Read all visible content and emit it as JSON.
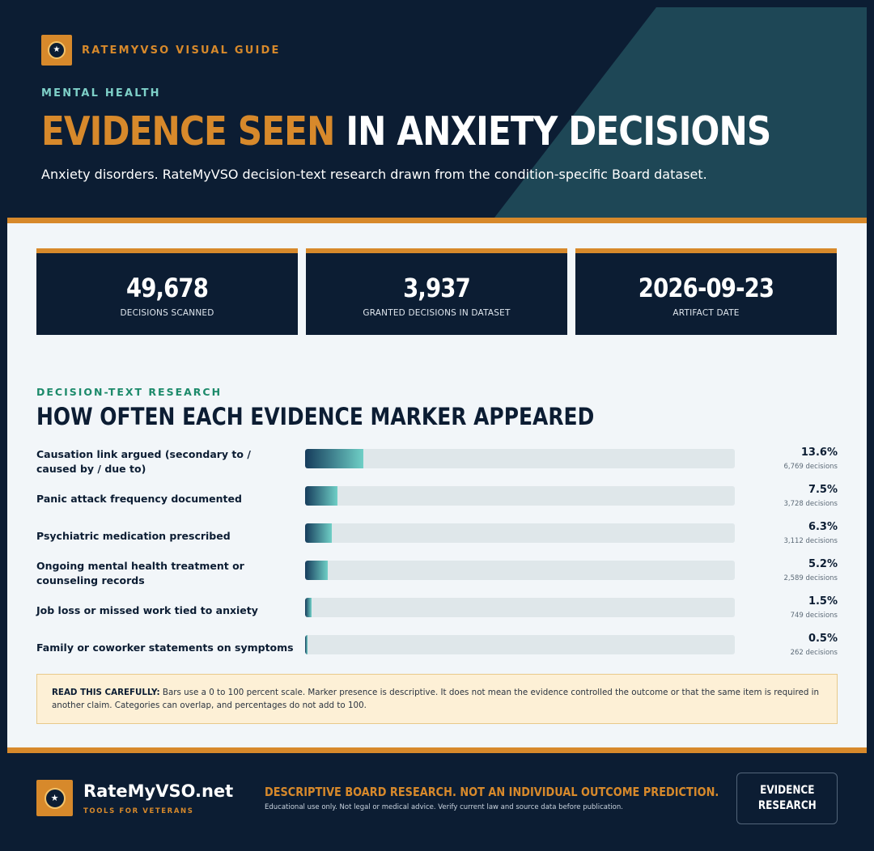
{
  "header": {
    "brand": "RATEMYVSO VISUAL GUIDE",
    "eyebrow": "MENTAL HEALTH",
    "headline_accent": "EVIDENCE SEEN",
    "headline_rest": "IN ANXIETY DECISIONS",
    "subtitle": "Anxiety disorders. RateMyVSO decision-text research drawn from the condition-specific Board dataset."
  },
  "stats": [
    {
      "value": "49,678",
      "caption": "DECISIONS SCANNED"
    },
    {
      "value": "3,937",
      "caption": "GRANTED DECISIONS IN DATASET"
    },
    {
      "value": "2026-09-23",
      "caption": "ARTIFACT DATE"
    }
  ],
  "section": {
    "eyebrow": "DECISION-TEXT RESEARCH",
    "title": "HOW OFTEN EACH EVIDENCE MARKER APPEARED"
  },
  "chart_data": {
    "type": "bar",
    "orientation": "horizontal",
    "title": "HOW OFTEN EACH EVIDENCE MARKER APPEARED",
    "xlim": [
      0,
      100
    ],
    "categories": [
      "Causation link argued (secondary to / caused by / due to)",
      "Panic attack frequency documented",
      "Psychiatric medication prescribed",
      "Ongoing mental health treatment or counseling records",
      "Job loss or missed work tied to anxiety",
      "Family or coworker statements on symptoms"
    ],
    "values": [
      13.6,
      7.5,
      6.3,
      5.2,
      1.5,
      0.5
    ],
    "value_labels": [
      "13.6%",
      "7.5%",
      "6.3%",
      "5.2%",
      "1.5%",
      "0.5%"
    ],
    "counts": [
      "6,769 decisions",
      "3,728 decisions",
      "3,112 decisions",
      "2,589 decisions",
      "749 decisions",
      "262 decisions"
    ],
    "colors": {
      "bar_start": "#163c5c",
      "bar_end": "#6fcfc6",
      "track": "#dfe7ea"
    }
  },
  "note": {
    "lead": "READ THIS CAREFULLY:",
    "text": "Bars use a 0 to 100 percent scale. Marker presence is descriptive. It does not mean the evidence controlled the outcome or that the same item is required in another claim. Categories can overlap, and percentages do not add to 100."
  },
  "footer": {
    "name": "RateMyVSO.net",
    "tagline": "TOOLS FOR VETERANS",
    "claim": "DESCRIPTIVE BOARD RESEARCH. NOT AN INDIVIDUAL OUTCOME PREDICTION.",
    "fine_print": "Educational use only. Not legal or medical advice. Verify current law and source data before publication.",
    "badge": "EVIDENCE\nRESEARCH"
  },
  "icons": {
    "logo": "shield-star-icon"
  },
  "colors": {
    "navy": "#0c1d33",
    "orange": "#d7892b",
    "teal": "#7ed0c8",
    "green": "#1c8a6a"
  }
}
